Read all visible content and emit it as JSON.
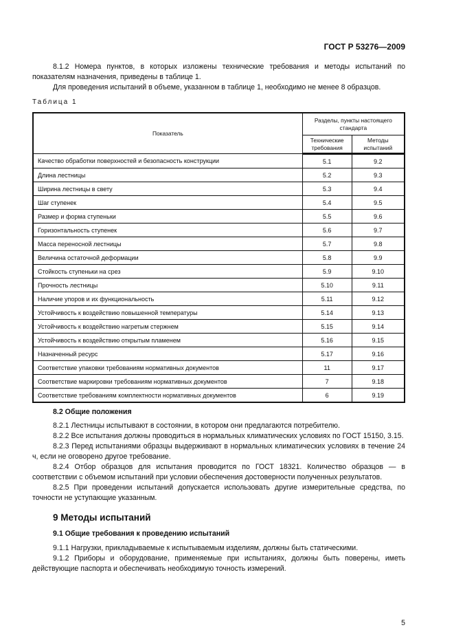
{
  "header": {
    "doc_code": "ГОСТ Р 53276—2009"
  },
  "intro": {
    "p1": "8.1.2 Номера пунктов, в которых изложены технические требования и методы испытаний по показателям назначения, приведены в таблице 1.",
    "p2": "Для проведения испытаний в объеме, указанном в таблице 1, необходимо не менее 8 образцов."
  },
  "table": {
    "caption": "Таблица 1",
    "col_indicator": "Показатель",
    "col_group": "Разделы, пункты настоящего стандарта",
    "col_tech": "Технические требования",
    "col_methods": "Методы испытаний",
    "rows": [
      {
        "name": "Качество обработки поверхностей и безопасность конструкции",
        "tech": "5.1",
        "method": "9.2"
      },
      {
        "name": "Длина лестницы",
        "tech": "5.2",
        "method": "9.3"
      },
      {
        "name": "Ширина лестницы в свету",
        "tech": "5.3",
        "method": "9.4"
      },
      {
        "name": "Шаг ступенек",
        "tech": "5.4",
        "method": "9.5"
      },
      {
        "name": "Размер и форма ступеньки",
        "tech": "5.5",
        "method": "9.6"
      },
      {
        "name": "Горизонтальность ступенек",
        "tech": "5.6",
        "method": "9.7"
      },
      {
        "name": "Масса переносной лестницы",
        "tech": "5.7",
        "method": "9.8"
      },
      {
        "name": "Величина остаточной деформации",
        "tech": "5.8",
        "method": "9.9"
      },
      {
        "name": "Стойкость ступеньки на срез",
        "tech": "5.9",
        "method": "9.10"
      },
      {
        "name": "Прочность лестницы",
        "tech": "5.10",
        "method": "9.11"
      },
      {
        "name": "Наличие упоров и их функциональность",
        "tech": "5.11",
        "method": "9.12"
      },
      {
        "name": "Устойчивость к воздействию повышенной температуры",
        "tech": "5.14",
        "method": "9.13"
      },
      {
        "name": "Устойчивость к воздействию нагретым стержнем",
        "tech": "5.15",
        "method": "9.14"
      },
      {
        "name": "Устойчивость к воздействию открытым пламенем",
        "tech": "5.16",
        "method": "9.15"
      },
      {
        "name": "Назначенный ресурс",
        "tech": "5.17",
        "method": "9.16"
      },
      {
        "name": "Соответствие упаковки требованиям нормативных документов",
        "tech": "11",
        "method": "9.17"
      },
      {
        "name": "Соответствие маркировки требованиям нормативных документов",
        "tech": "7",
        "method": "9.18"
      },
      {
        "name": "Соответствие требованиям комплектности нормативных документов",
        "tech": "6",
        "method": "9.19"
      }
    ]
  },
  "s82": {
    "title": "8.2 Общие положения",
    "p1": "8.2.1 Лестницы испытывают в состоянии, в котором они предлагаются потребителю.",
    "p2": "8.2.2 Все испытания должны проводиться в нормальных климатических условиях по ГОСТ 15150, 3.15.",
    "p3": "8.2.3 Перед испытаниями образцы выдерживают в нормальных климатических условиях в течение 24 ч, если не оговорено другое требование.",
    "p4": "8.2.4 Отбор образцов для испытания проводится по ГОСТ 18321. Количество образцов — в соответствии с объемом испытаний при условии обеспечения достоверности полученных результатов.",
    "p5": "8.2.5 При проведении испытаний допускается использовать другие измерительные средства, по точности не уступающие указанным."
  },
  "s9": {
    "title": "9 Методы испытаний",
    "sub": "9.1 Общие требования к проведению испытаний",
    "p1": "9.1.1 Нагрузки, прикладываемые к испытываемым изделиям, должны быть статическими.",
    "p2": "9.1.2 Приборы и оборудование, применяемые при испытаниях, должны быть поверены, иметь действующие паспорта и обеспечивать необходимую точность измерений."
  },
  "page_number": "5"
}
